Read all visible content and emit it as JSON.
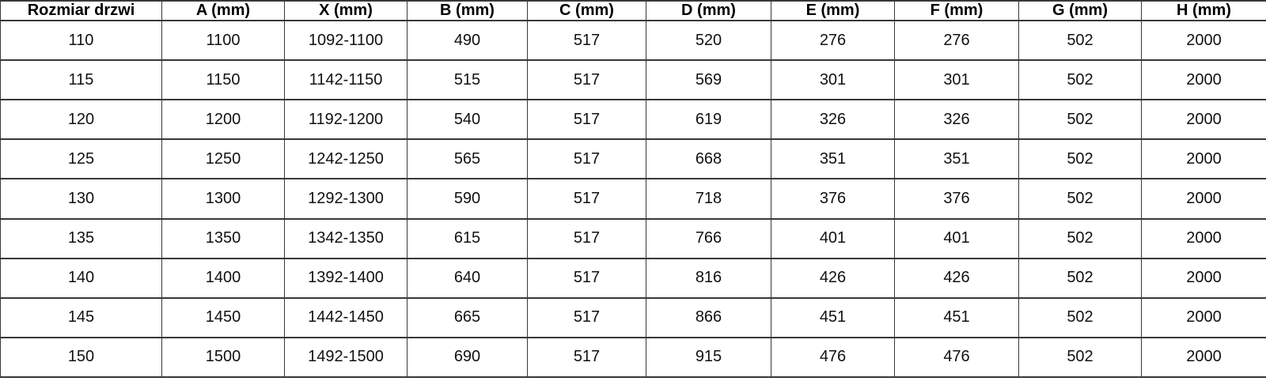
{
  "table": {
    "columns": [
      "Rozmiar drzwi",
      "A (mm)",
      "X (mm)",
      "B (mm)",
      "C (mm)",
      "D (mm)",
      "E (mm)",
      "F (mm)",
      "G (mm)",
      "H (mm)"
    ],
    "rows": [
      [
        "110",
        "1100",
        "1092-1100",
        "490",
        "517",
        "520",
        "276",
        "276",
        "502",
        "2000"
      ],
      [
        "115",
        "1150",
        "1142-1150",
        "515",
        "517",
        "569",
        "301",
        "301",
        "502",
        "2000"
      ],
      [
        "120",
        "1200",
        "1192-1200",
        "540",
        "517",
        "619",
        "326",
        "326",
        "502",
        "2000"
      ],
      [
        "125",
        "1250",
        "1242-1250",
        "565",
        "517",
        "668",
        "351",
        "351",
        "502",
        "2000"
      ],
      [
        "130",
        "1300",
        "1292-1300",
        "590",
        "517",
        "718",
        "376",
        "376",
        "502",
        "2000"
      ],
      [
        "135",
        "1350",
        "1342-1350",
        "615",
        "517",
        "766",
        "401",
        "401",
        "502",
        "2000"
      ],
      [
        "140",
        "1400",
        "1392-1400",
        "640",
        "517",
        "816",
        "426",
        "426",
        "502",
        "2000"
      ],
      [
        "145",
        "1450",
        "1442-1450",
        "665",
        "517",
        "866",
        "451",
        "451",
        "502",
        "2000"
      ],
      [
        "150",
        "1500",
        "1492-1500",
        "690",
        "517",
        "915",
        "476",
        "476",
        "502",
        "2000"
      ]
    ]
  },
  "colors": {
    "border": "#383838",
    "text": "#111111",
    "background": "#ffffff"
  }
}
